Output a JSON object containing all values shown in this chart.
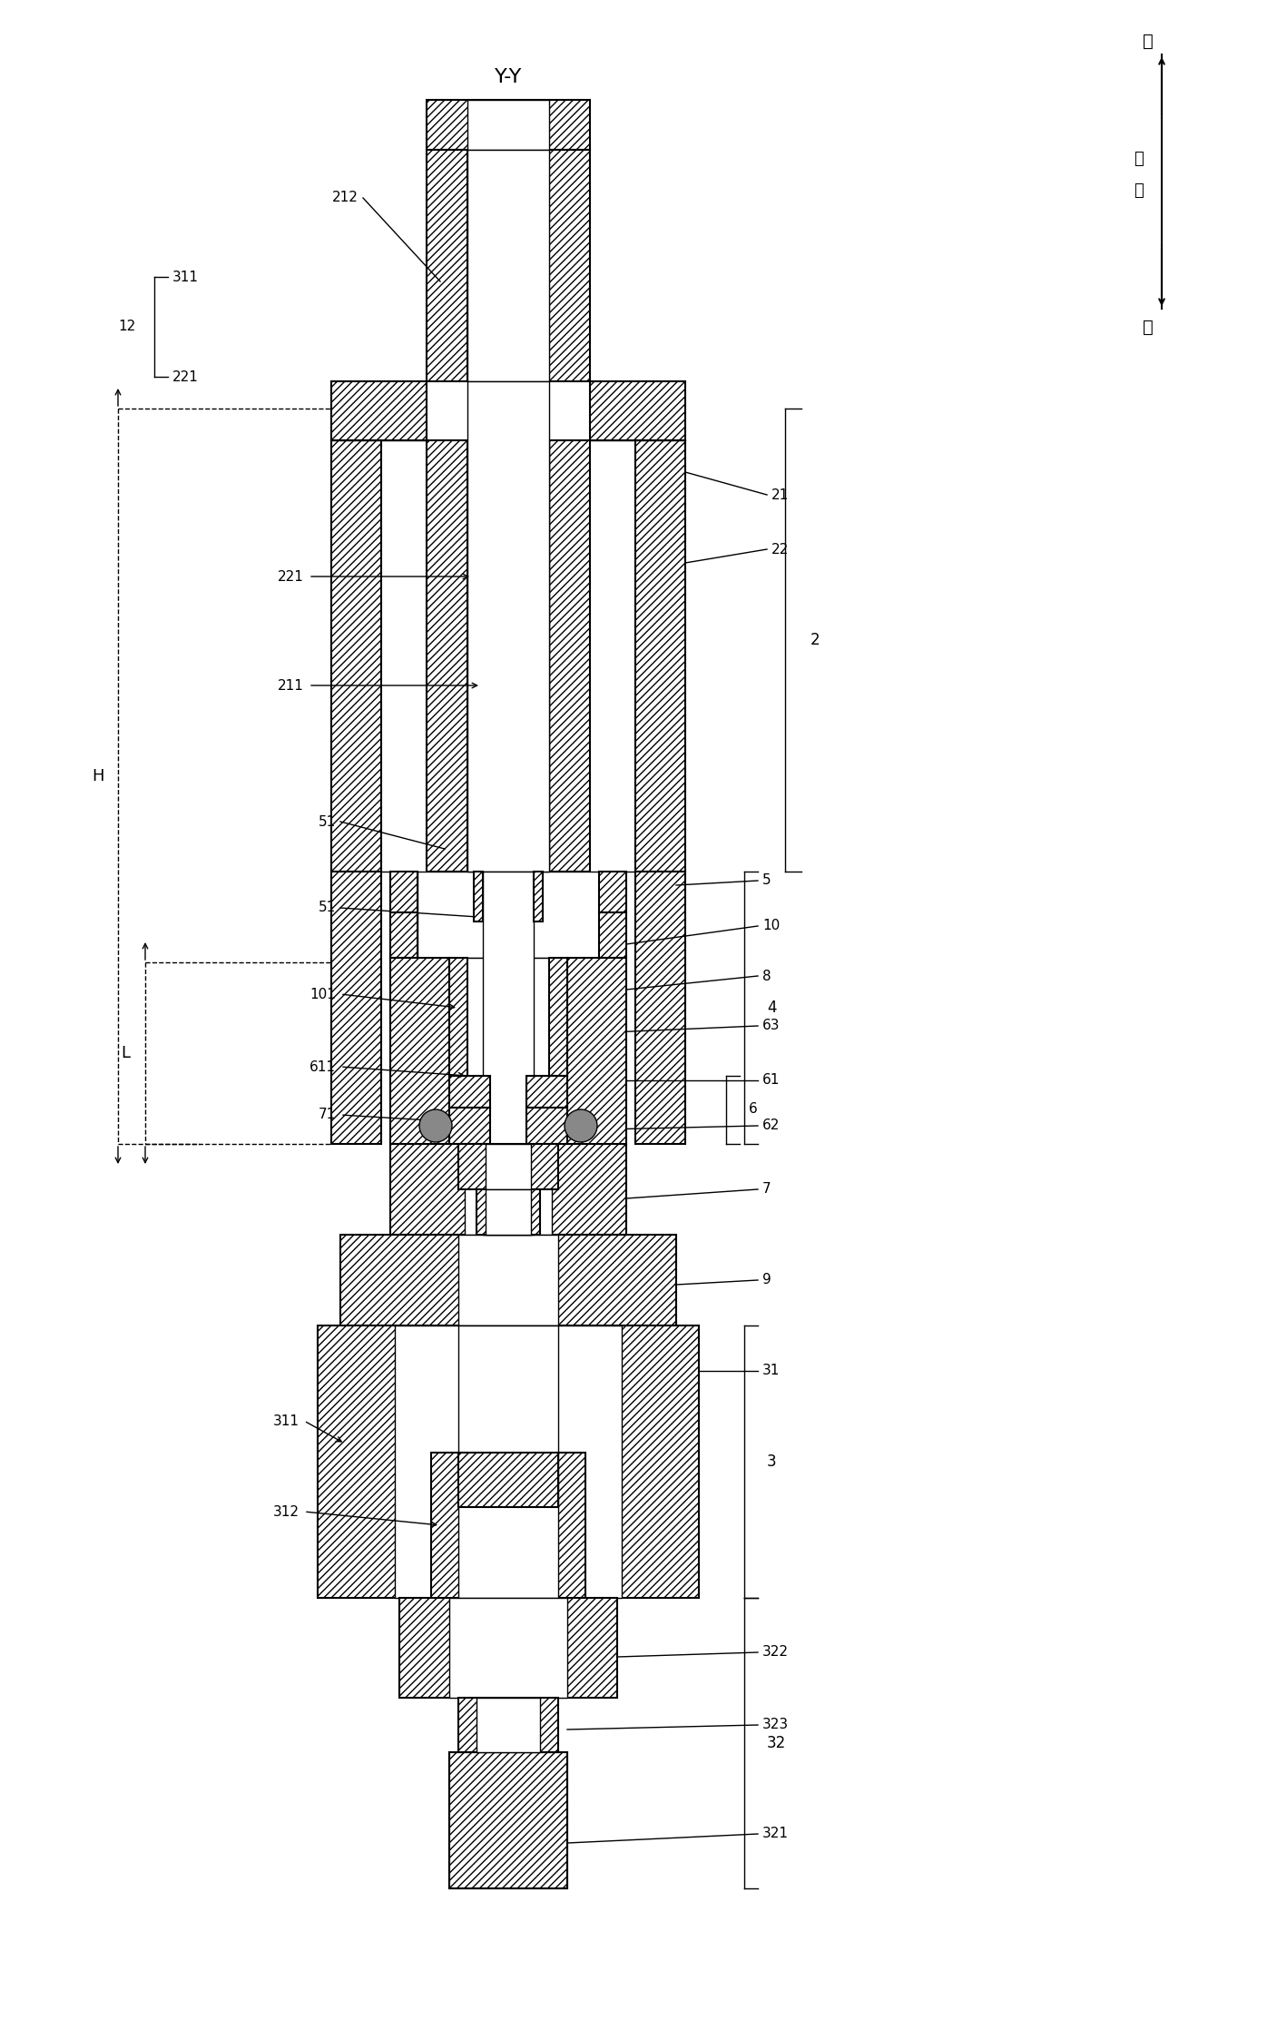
{
  "bg_color": "#ffffff",
  "line_color": "#000000",
  "labels": {
    "YY": "Y-Y",
    "up": "上",
    "axial1": "轴",
    "axial2": "向",
    "down": "下",
    "H": "H",
    "L": "L",
    "n12": "12",
    "n2": "2",
    "n3": "3",
    "n4": "4",
    "n5": "5",
    "n6": "6",
    "n7": "7",
    "n8": "8",
    "n9": "9",
    "n10": "10",
    "n21": "21",
    "n22": "22",
    "n31": "31",
    "n32": "32",
    "n51": "51",
    "n61": "61",
    "n62": "62",
    "n63": "63",
    "n71": "71",
    "n101": "101",
    "n211": "211",
    "n212": "212",
    "n221": "221",
    "n311": "311",
    "n312": "312",
    "n321": "321",
    "n322": "322",
    "n323": "323",
    "n611": "611"
  }
}
